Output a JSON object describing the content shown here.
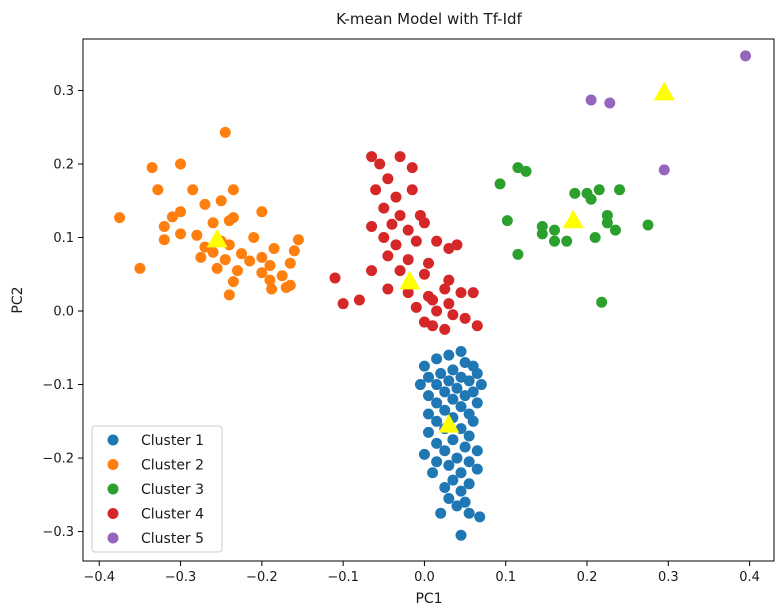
{
  "chart_data": {
    "type": "scatter",
    "title": "K-mean Model with Tf-Idf",
    "xlabel": "PC1",
    "ylabel": "PC2",
    "xlim": [
      -0.42,
      0.43
    ],
    "ylim": [
      -0.34,
      0.37
    ],
    "xticks": [
      -0.4,
      -0.3,
      -0.2,
      -0.1,
      0.0,
      0.1,
      0.2,
      0.3,
      0.4
    ],
    "xtick_labels": [
      "−0.4",
      "−0.3",
      "−0.2",
      "−0.1",
      "0.0",
      "0.1",
      "0.2",
      "0.3",
      "0.4"
    ],
    "yticks": [
      -0.3,
      -0.2,
      -0.1,
      0.0,
      0.1,
      0.2,
      0.3
    ],
    "ytick_labels": [
      "−0.3",
      "−0.2",
      "−0.1",
      "0.0",
      "0.1",
      "0.2",
      "0.3"
    ],
    "grid": false,
    "legend_position": "lower-left",
    "series": [
      {
        "name": "Cluster 1",
        "color": "#1f77b4",
        "points": [
          [
            0.045,
            -0.055
          ],
          [
            0.03,
            -0.06
          ],
          [
            0.015,
            -0.065
          ],
          [
            0.05,
            -0.07
          ],
          [
            0.06,
            -0.075
          ],
          [
            0.0,
            -0.075
          ],
          [
            0.035,
            -0.08
          ],
          [
            0.02,
            -0.085
          ],
          [
            0.065,
            -0.085
          ],
          [
            0.005,
            -0.09
          ],
          [
            0.045,
            -0.09
          ],
          [
            0.03,
            -0.095
          ],
          [
            0.055,
            -0.095
          ],
          [
            -0.005,
            -0.1
          ],
          [
            0.015,
            -0.1
          ],
          [
            0.07,
            -0.1
          ],
          [
            0.04,
            -0.105
          ],
          [
            0.025,
            -0.11
          ],
          [
            0.06,
            -0.11
          ],
          [
            0.005,
            -0.115
          ],
          [
            0.05,
            -0.115
          ],
          [
            0.035,
            -0.12
          ],
          [
            0.015,
            -0.125
          ],
          [
            0.065,
            -0.125
          ],
          [
            0.045,
            -0.13
          ],
          [
            0.025,
            -0.135
          ],
          [
            0.005,
            -0.14
          ],
          [
            0.055,
            -0.14
          ],
          [
            0.035,
            -0.145
          ],
          [
            0.015,
            -0.15
          ],
          [
            0.06,
            -0.15
          ],
          [
            0.045,
            -0.16
          ],
          [
            0.025,
            -0.16
          ],
          [
            0.005,
            -0.165
          ],
          [
            0.055,
            -0.17
          ],
          [
            0.035,
            -0.175
          ],
          [
            0.015,
            -0.18
          ],
          [
            0.05,
            -0.185
          ],
          [
            0.065,
            -0.19
          ],
          [
            0.025,
            -0.19
          ],
          [
            0.0,
            -0.195
          ],
          [
            0.04,
            -0.2
          ],
          [
            0.055,
            -0.205
          ],
          [
            0.015,
            -0.205
          ],
          [
            0.03,
            -0.21
          ],
          [
            0.065,
            -0.215
          ],
          [
            0.045,
            -0.22
          ],
          [
            0.01,
            -0.22
          ],
          [
            0.035,
            -0.23
          ],
          [
            0.055,
            -0.235
          ],
          [
            0.025,
            -0.24
          ],
          [
            0.045,
            -0.245
          ],
          [
            0.03,
            -0.255
          ],
          [
            0.05,
            -0.26
          ],
          [
            0.04,
            -0.265
          ],
          [
            0.02,
            -0.275
          ],
          [
            0.055,
            -0.275
          ],
          [
            0.068,
            -0.28
          ],
          [
            0.045,
            -0.305
          ]
        ]
      },
      {
        "name": "Cluster 2",
        "color": "#ff7f0e",
        "points": [
          [
            -0.245,
            0.243
          ],
          [
            -0.335,
            0.195
          ],
          [
            -0.3,
            0.2
          ],
          [
            -0.285,
            0.165
          ],
          [
            -0.328,
            0.165
          ],
          [
            -0.235,
            0.165
          ],
          [
            -0.25,
            0.15
          ],
          [
            -0.27,
            0.145
          ],
          [
            -0.2,
            0.135
          ],
          [
            -0.3,
            0.135
          ],
          [
            -0.31,
            0.128
          ],
          [
            -0.375,
            0.127
          ],
          [
            -0.235,
            0.127
          ],
          [
            -0.24,
            0.123
          ],
          [
            -0.26,
            0.12
          ],
          [
            -0.32,
            0.115
          ],
          [
            -0.3,
            0.105
          ],
          [
            -0.28,
            0.103
          ],
          [
            -0.21,
            0.1
          ],
          [
            -0.155,
            0.097
          ],
          [
            -0.32,
            0.097
          ],
          [
            -0.25,
            0.095
          ],
          [
            -0.24,
            0.09
          ],
          [
            -0.27,
            0.087
          ],
          [
            -0.185,
            0.085
          ],
          [
            -0.26,
            0.08
          ],
          [
            -0.16,
            0.082
          ],
          [
            -0.225,
            0.078
          ],
          [
            -0.2,
            0.073
          ],
          [
            -0.275,
            0.073
          ],
          [
            -0.245,
            0.07
          ],
          [
            -0.215,
            0.068
          ],
          [
            -0.165,
            0.065
          ],
          [
            -0.19,
            0.062
          ],
          [
            -0.35,
            0.058
          ],
          [
            -0.255,
            0.058
          ],
          [
            -0.23,
            0.055
          ],
          [
            -0.2,
            0.052
          ],
          [
            -0.175,
            0.048
          ],
          [
            -0.19,
            0.042
          ],
          [
            -0.235,
            0.04
          ],
          [
            -0.17,
            0.032
          ],
          [
            -0.165,
            0.035
          ],
          [
            -0.188,
            0.03
          ],
          [
            -0.24,
            0.022
          ]
        ]
      },
      {
        "name": "Cluster 3",
        "color": "#2ca02c",
        "points": [
          [
            0.093,
            0.173
          ],
          [
            0.115,
            0.195
          ],
          [
            0.125,
            0.19
          ],
          [
            0.215,
            0.165
          ],
          [
            0.24,
            0.165
          ],
          [
            0.2,
            0.16
          ],
          [
            0.185,
            0.16
          ],
          [
            0.205,
            0.152
          ],
          [
            0.102,
            0.123
          ],
          [
            0.16,
            0.11
          ],
          [
            0.145,
            0.105
          ],
          [
            0.145,
            0.115
          ],
          [
            0.225,
            0.13
          ],
          [
            0.225,
            0.12
          ],
          [
            0.235,
            0.11
          ],
          [
            0.275,
            0.117
          ],
          [
            0.21,
            0.1
          ],
          [
            0.16,
            0.095
          ],
          [
            0.175,
            0.095
          ],
          [
            0.115,
            0.077
          ],
          [
            0.218,
            0.012
          ]
        ]
      },
      {
        "name": "Cluster 4",
        "color": "#d62728",
        "points": [
          [
            -0.065,
            0.21
          ],
          [
            -0.055,
            0.2
          ],
          [
            -0.03,
            0.21
          ],
          [
            -0.015,
            0.195
          ],
          [
            -0.045,
            0.18
          ],
          [
            -0.06,
            0.165
          ],
          [
            -0.035,
            0.155
          ],
          [
            -0.015,
            0.165
          ],
          [
            -0.05,
            0.14
          ],
          [
            -0.03,
            0.13
          ],
          [
            -0.005,
            0.13
          ],
          [
            0.0,
            0.12
          ],
          [
            -0.04,
            0.118
          ],
          [
            -0.065,
            0.115
          ],
          [
            -0.02,
            0.11
          ],
          [
            -0.05,
            0.1
          ],
          [
            -0.035,
            0.09
          ],
          [
            -0.01,
            0.095
          ],
          [
            0.015,
            0.095
          ],
          [
            0.04,
            0.09
          ],
          [
            0.03,
            0.085
          ],
          [
            -0.045,
            0.075
          ],
          [
            -0.02,
            0.07
          ],
          [
            0.005,
            0.065
          ],
          [
            -0.03,
            0.055
          ],
          [
            -0.065,
            0.055
          ],
          [
            -0.11,
            0.045
          ],
          [
            0.0,
            0.05
          ],
          [
            0.03,
            0.042
          ],
          [
            0.025,
            0.03
          ],
          [
            -0.045,
            0.03
          ],
          [
            -0.02,
            0.025
          ],
          [
            0.005,
            0.02
          ],
          [
            0.045,
            0.025
          ],
          [
            0.06,
            0.025
          ],
          [
            -0.08,
            0.015
          ],
          [
            -0.1,
            0.01
          ],
          [
            0.01,
            0.015
          ],
          [
            0.03,
            0.01
          ],
          [
            -0.01,
            0.005
          ],
          [
            0.015,
            0.0
          ],
          [
            0.035,
            -0.005
          ],
          [
            0.05,
            -0.01
          ],
          [
            0.065,
            -0.02
          ],
          [
            0.01,
            -0.02
          ],
          [
            0.025,
            -0.025
          ],
          [
            0.0,
            -0.015
          ]
        ]
      },
      {
        "name": "Cluster 5",
        "color": "#9467bd",
        "points": [
          [
            0.395,
            0.347
          ],
          [
            0.205,
            0.287
          ],
          [
            0.228,
            0.283
          ],
          [
            0.295,
            0.192
          ]
        ]
      }
    ],
    "centroids": {
      "color": "#ffff00",
      "marker": "triangle",
      "points": [
        [
          0.03,
          -0.155
        ],
        [
          -0.255,
          0.097
        ],
        [
          0.183,
          0.123
        ],
        [
          -0.018,
          0.04
        ],
        [
          0.295,
          0.297
        ]
      ]
    }
  }
}
